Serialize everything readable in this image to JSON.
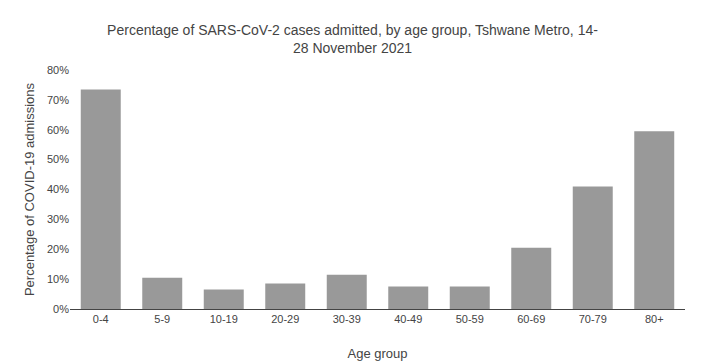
{
  "chart_data": {
    "type": "bar",
    "title": "Percentage of SARS-CoV-2 cases admitted, by age group, Tshwane Metro, 14-\n28 November 2021",
    "xlabel": "Age group",
    "ylabel": "Percentage of COVID-19 admissions",
    "categories": [
      "0-4",
      "5-9",
      "10-19",
      "20-29",
      "30-39",
      "40-49",
      "50-59",
      "60-69",
      "70-79",
      "80+"
    ],
    "values": [
      73.5,
      10.5,
      6.5,
      8.5,
      11.5,
      7.5,
      7.5,
      20.5,
      41.0,
      59.5
    ],
    "color": "#999999",
    "ylim": [
      0,
      80
    ],
    "yticks": [
      {
        "value": 0,
        "label": "0%"
      },
      {
        "value": 10,
        "label": "10%"
      },
      {
        "value": 20,
        "label": "20%"
      },
      {
        "value": 30,
        "label": "30%"
      },
      {
        "value": 40,
        "label": "40%"
      },
      {
        "value": 50,
        "label": "50%"
      },
      {
        "value": 60,
        "label": "60%"
      },
      {
        "value": 70,
        "label": "70%"
      },
      {
        "value": 80,
        "label": "80%"
      }
    ],
    "grid": false
  }
}
